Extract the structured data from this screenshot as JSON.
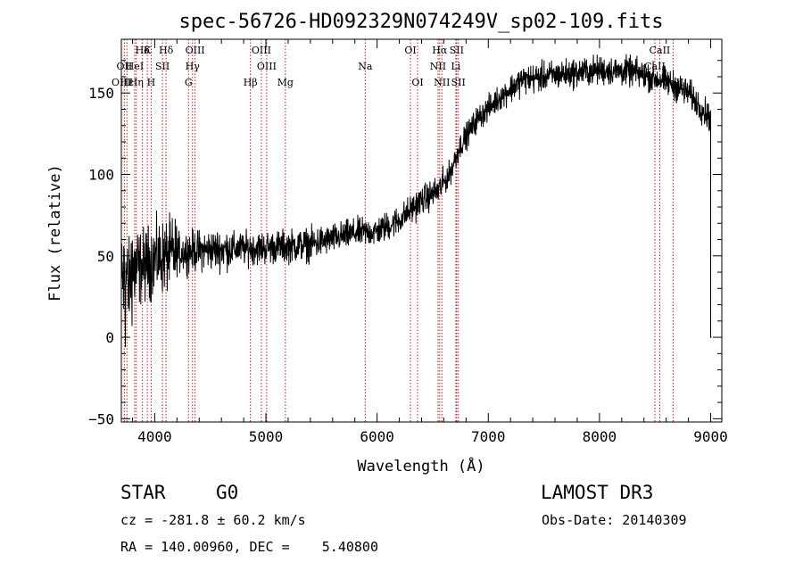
{
  "chart_data": {
    "type": "line",
    "title": "spec-56726-HD092329N074249V_sp02-109.fits",
    "xlabel": "Wavelength (Å)",
    "ylabel": "Flux (relative)",
    "xlim": [
      3700,
      9100
    ],
    "ylim": [
      -52,
      183
    ],
    "xticks": [
      4000,
      5000,
      6000,
      7000,
      8000,
      9000
    ],
    "yticks": [
      -50,
      0,
      50,
      100,
      150
    ],
    "spectrum_end": 9000,
    "continuum": {
      "x": [
        3700,
        3800,
        4000,
        4300,
        4600,
        5000,
        5400,
        5800,
        6000,
        6200,
        6400,
        6550,
        6650,
        6750,
        6900,
        7100,
        7300,
        7600,
        8000,
        8300,
        8600,
        8800,
        8990
      ],
      "y": [
        35,
        40,
        48,
        53,
        54,
        55,
        57,
        64,
        65,
        72,
        84,
        90,
        100,
        118,
        134,
        147,
        158,
        161,
        164,
        163,
        157,
        150,
        135
      ]
    },
    "emission_lines": [
      {
        "label": "Hδ",
        "wave": 3890,
        "row": 1
      },
      {
        "label": "K",
        "wave": 3934,
        "row": 1
      },
      {
        "label": "Hδ",
        "wave": 4102,
        "row": 1
      },
      {
        "label": "OIII",
        "wave": 4363,
        "row": 1
      },
      {
        "label": "OIII",
        "wave": 4959,
        "row": 1
      },
      {
        "label": "OI",
        "wave": 6300,
        "row": 1
      },
      {
        "label": "Hα",
        "wave": 6563,
        "row": 1
      },
      {
        "label": "SII",
        "wave": 6716,
        "row": 1
      },
      {
        "label": "CaII",
        "wave": 8542,
        "row": 1
      },
      {
        "label": "OII",
        "wave": 3727,
        "row": 2
      },
      {
        "label": "HeI",
        "wave": 3820,
        "row": 2
      },
      {
        "label": "SII",
        "wave": 4070,
        "row": 2
      },
      {
        "label": "Hγ",
        "wave": 4340,
        "row": 2
      },
      {
        "label": "OIII",
        "wave": 5007,
        "row": 2
      },
      {
        "label": "Na",
        "wave": 5893,
        "row": 2
      },
      {
        "label": "NII",
        "wave": 6548,
        "row": 2
      },
      {
        "label": "Li",
        "wave": 6708,
        "row": 2
      },
      {
        "label": "CaII",
        "wave": 8498,
        "row": 2
      },
      {
        "label": "OIII",
        "wave": 3700,
        "row": 3
      },
      {
        "label": "Hε",
        "wave": 3750,
        "row": 3
      },
      {
        "label": "Hη",
        "wave": 3835,
        "row": 3
      },
      {
        "label": "H",
        "wave": 3968,
        "row": 3
      },
      {
        "label": "G",
        "wave": 4304,
        "row": 3
      },
      {
        "label": "Hβ",
        "wave": 4861,
        "row": 3
      },
      {
        "label": "Mg",
        "wave": 5175,
        "row": 3
      },
      {
        "label": "OI",
        "wave": 6364,
        "row": 3
      },
      {
        "label": "NII",
        "wave": 6583,
        "row": 3
      },
      {
        "label": "SII",
        "wave": 6731,
        "row": 3
      },
      {
        "label": "CaII",
        "wave": 8662,
        "row": 3
      }
    ]
  },
  "info": {
    "object_class": "STAR",
    "subclass": "G0",
    "survey": "LAMOST DR3",
    "redshift": "cz = -281.8 ± 60.2 km/s",
    "obs_date": "Obs-Date: 20140309",
    "coords": "RA = 140.00960, DEC =    5.40800"
  },
  "colors": {
    "spectrum": "#000000",
    "line_marker": "#b22222",
    "axes": "#000000"
  }
}
